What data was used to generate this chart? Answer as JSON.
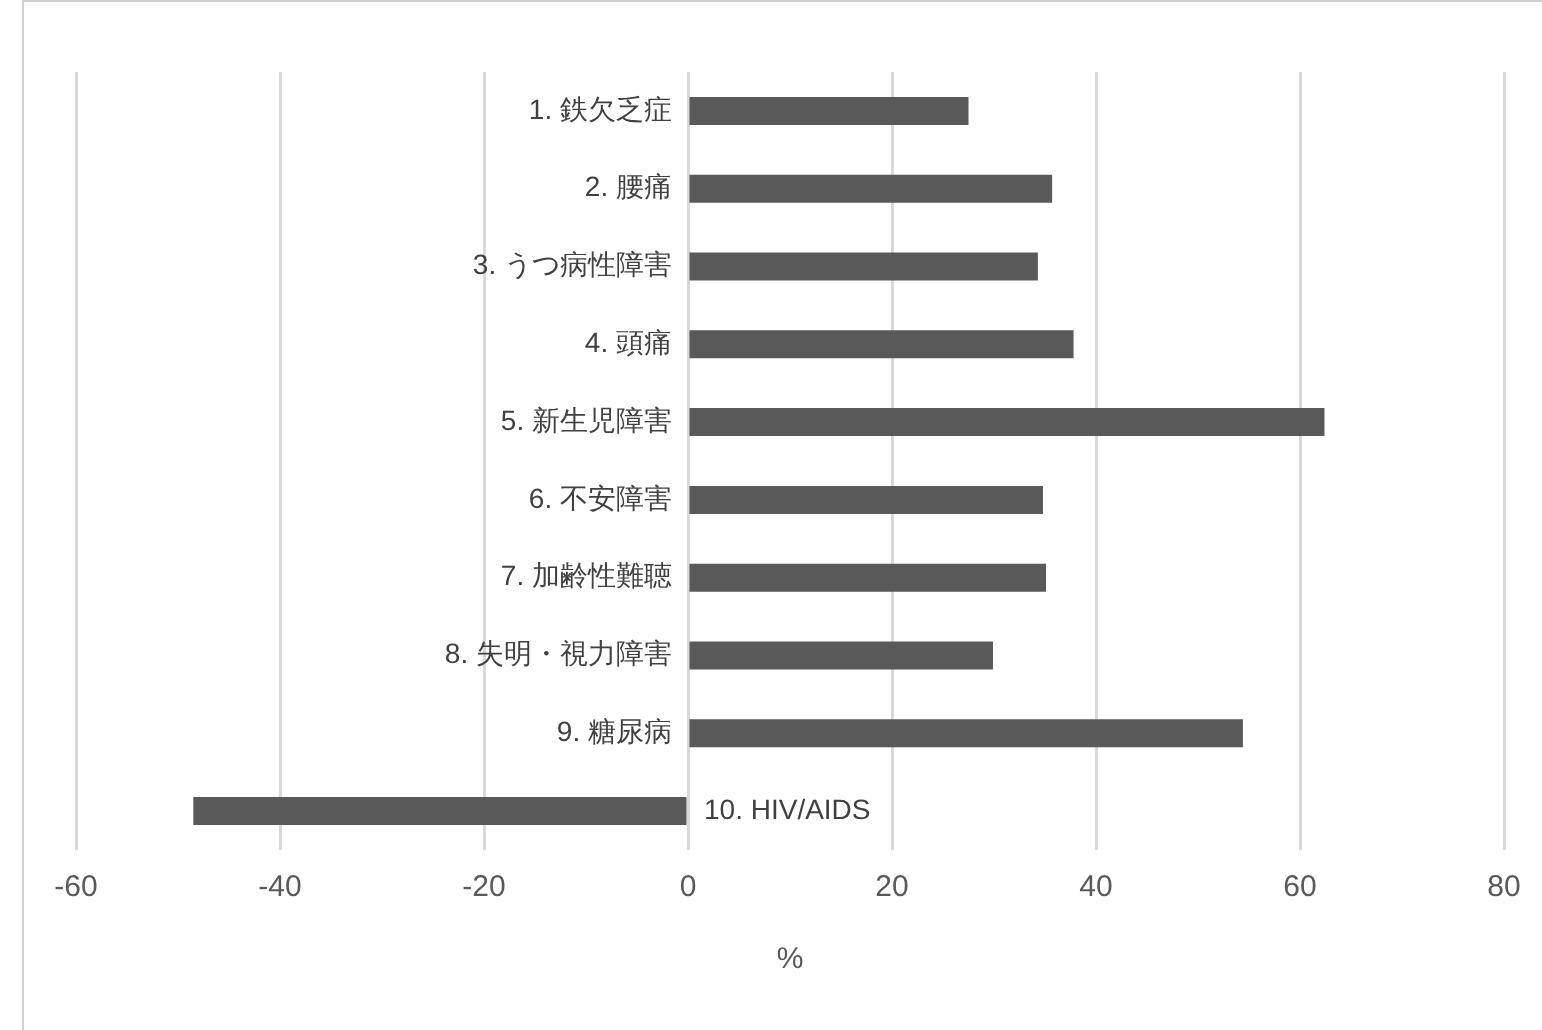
{
  "chart_data": {
    "type": "bar",
    "orientation": "horizontal",
    "xlabel": "%",
    "categories": [
      "1. 鉄欠乏症",
      "2. 腰痛",
      "3. うつ病性障害",
      "4. 頭痛",
      "5. 新生児障害",
      "6. 不安障害",
      "7. 加齢性難聴",
      "8. 失明・視力障害",
      "9. 糖尿病",
      "10. HIV/AIDS"
    ],
    "values": [
      27.5,
      35.7,
      34.3,
      37.8,
      62.4,
      34.8,
      35.1,
      29.9,
      54.4,
      -48.5
    ],
    "color": "#595959",
    "xlim": [
      -60,
      80
    ],
    "xticks": [
      -60,
      -40,
      -20,
      0,
      20,
      40,
      60,
      80
    ],
    "grid": "x",
    "legend": false
  }
}
